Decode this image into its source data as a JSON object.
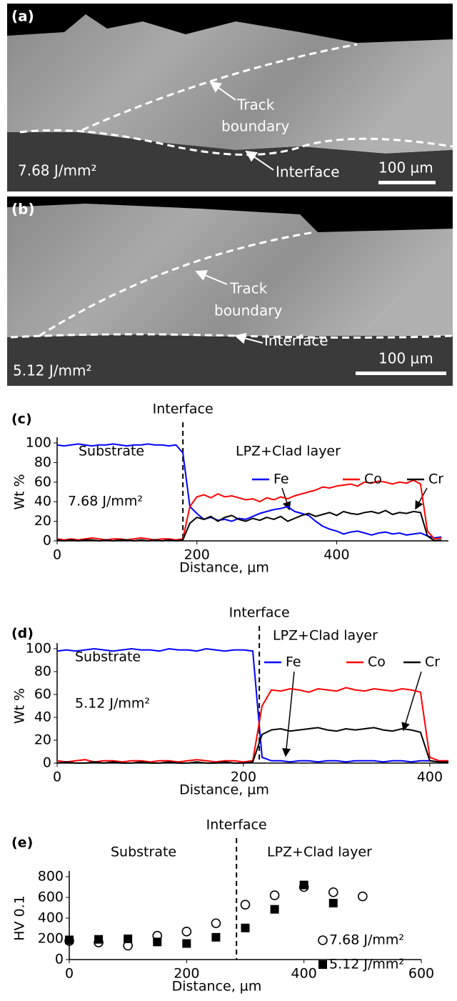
{
  "micrographs": [
    {
      "label": "(a)",
      "track_boundary": [
        "Track",
        "boundary"
      ],
      "interface": "Interface",
      "energy": "7.68 J/mm²",
      "scale_bar": "100 µm"
    },
    {
      "label": "(b)",
      "track_boundary": [
        "Track",
        "boundary"
      ],
      "interface": "Interface",
      "energy": "5.12 J/mm²",
      "scale_bar": "100 µm"
    }
  ],
  "chart_data": [
    {
      "type": "line",
      "panel": "(c)",
      "x_label": "Distance, µm",
      "y_label": "Wt %",
      "interface": {
        "label": "Interface",
        "x": 180
      },
      "regions": [
        "Substrate",
        "LPZ+Clad layer"
      ],
      "energy": "7.68 J/mm²",
      "xlim": [
        0,
        560
      ],
      "xticks": [
        0,
        200,
        400
      ],
      "ylim": [
        0,
        100
      ],
      "yticks": [
        0,
        20,
        40,
        60,
        80,
        100
      ],
      "x": [
        0,
        10,
        20,
        30,
        40,
        50,
        60,
        70,
        80,
        90,
        100,
        110,
        120,
        130,
        140,
        150,
        160,
        170,
        180,
        190,
        200,
        210,
        220,
        230,
        240,
        250,
        260,
        270,
        280,
        290,
        300,
        310,
        320,
        330,
        340,
        350,
        360,
        370,
        380,
        390,
        400,
        410,
        420,
        430,
        440,
        450,
        460,
        470,
        480,
        490,
        500,
        510,
        520,
        530,
        540,
        550
      ],
      "series": [
        {
          "name": "Fe",
          "color": "#0000ff",
          "values": [
            98,
            97,
            98,
            99,
            98,
            97,
            98,
            98,
            99,
            98,
            97,
            98,
            98,
            99,
            98,
            98,
            97,
            98,
            90,
            35,
            28,
            22,
            24,
            21,
            22,
            20,
            23,
            22,
            25,
            28,
            30,
            32,
            33,
            35,
            30,
            28,
            26,
            20,
            15,
            12,
            10,
            7,
            9,
            10,
            8,
            6,
            8,
            9,
            7,
            8,
            6,
            7,
            8,
            5,
            3,
            4
          ]
        },
        {
          "name": "Co",
          "color": "#ff0000",
          "values": [
            2,
            1,
            2,
            1,
            2,
            3,
            2,
            1,
            2,
            2,
            1,
            2,
            3,
            2,
            1,
            2,
            2,
            1,
            2,
            35,
            45,
            47,
            44,
            48,
            45,
            46,
            44,
            42,
            43,
            40,
            44,
            42,
            45,
            43,
            46,
            48,
            50,
            52,
            55,
            54,
            56,
            57,
            58,
            56,
            60,
            59,
            61,
            60,
            58,
            60,
            59,
            62,
            58,
            10,
            2,
            3
          ]
        },
        {
          "name": "Cr",
          "color": "#000000",
          "values": [
            1,
            0,
            1,
            0,
            1,
            1,
            0,
            1,
            0,
            1,
            1,
            0,
            1,
            0,
            1,
            0,
            1,
            0,
            1,
            18,
            24,
            22,
            25,
            20,
            24,
            26,
            22,
            20,
            23,
            21,
            24,
            22,
            25,
            20,
            23,
            26,
            28,
            25,
            27,
            29,
            26,
            30,
            28,
            27,
            29,
            30,
            28,
            31,
            27,
            29,
            28,
            30,
            29,
            5,
            0,
            1
          ]
        }
      ]
    },
    {
      "type": "line",
      "panel": "(d)",
      "x_label": "Distance, µm",
      "y_label": "Wt %",
      "interface": {
        "label": "Interface",
        "x": 217
      },
      "regions": [
        "Substrate",
        "LPZ+Clad layer"
      ],
      "energy": "5.12 J/mm²",
      "xlim": [
        0,
        420
      ],
      "xticks": [
        0,
        200,
        400
      ],
      "ylim": [
        0,
        100
      ],
      "yticks": [
        0,
        20,
        40,
        60,
        80,
        100
      ],
      "x": [
        0,
        10,
        20,
        30,
        40,
        50,
        60,
        70,
        80,
        90,
        100,
        110,
        120,
        130,
        140,
        150,
        160,
        170,
        180,
        190,
        200,
        210,
        220,
        230,
        240,
        250,
        260,
        270,
        280,
        290,
        300,
        310,
        320,
        330,
        340,
        350,
        360,
        370,
        380,
        390,
        400,
        410,
        420
      ],
      "series": [
        {
          "name": "Fe",
          "color": "#0000ff",
          "values": [
            98,
            99,
            98,
            99,
            100,
            99,
            98,
            99,
            100,
            99,
            99,
            98,
            100,
            99,
            99,
            98,
            100,
            99,
            98,
            99,
            99,
            98,
            5,
            2,
            2,
            1,
            2,
            2,
            1,
            2,
            2,
            1,
            2,
            2,
            2,
            1,
            2,
            2,
            1,
            2,
            2,
            1,
            2
          ]
        },
        {
          "name": "Co",
          "color": "#ff0000",
          "values": [
            2,
            1,
            2,
            3,
            1,
            2,
            2,
            1,
            2,
            2,
            1,
            2,
            2,
            1,
            2,
            3,
            2,
            1,
            2,
            2,
            1,
            2,
            50,
            64,
            63,
            65,
            64,
            62,
            65,
            64,
            63,
            66,
            64,
            63,
            65,
            64,
            63,
            65,
            64,
            62,
            5,
            2,
            2
          ]
        },
        {
          "name": "Cr",
          "color": "#000000",
          "values": [
            0,
            1,
            0,
            0,
            1,
            0,
            1,
            0,
            0,
            1,
            0,
            0,
            1,
            0,
            0,
            1,
            0,
            0,
            1,
            0,
            0,
            1,
            25,
            29,
            30,
            28,
            29,
            30,
            31,
            29,
            28,
            30,
            29,
            30,
            31,
            29,
            28,
            30,
            29,
            27,
            2,
            1,
            1
          ]
        }
      ]
    },
    {
      "type": "scatter",
      "panel": "(e)",
      "x_label": "Distance, µm",
      "y_label": "HV 0.1",
      "interface": {
        "label": "Interface",
        "x": 285
      },
      "regions": [
        "Substrate",
        "LPZ+Clad layer"
      ],
      "xlim": [
        0,
        600
      ],
      "xticks": [
        0,
        200,
        400,
        600
      ],
      "ylim": [
        0,
        800
      ],
      "yticks": [
        0,
        200,
        400,
        600,
        800
      ],
      "series": [
        {
          "name": "7.68 J/mm²",
          "color": "#000000",
          "marker": "circle",
          "x": [
            0,
            50,
            100,
            150,
            200,
            250,
            300,
            350,
            400,
            450,
            500
          ],
          "values": [
            180,
            165,
            135,
            230,
            270,
            350,
            530,
            620,
            700,
            650,
            610
          ]
        },
        {
          "name": "5.12 J/mm²",
          "color": "#000000",
          "marker": "square",
          "x": [
            0,
            50,
            100,
            150,
            200,
            250,
            300,
            350,
            400,
            450
          ],
          "values": [
            190,
            195,
            200,
            170,
            155,
            215,
            305,
            485,
            720,
            545
          ]
        }
      ]
    }
  ]
}
